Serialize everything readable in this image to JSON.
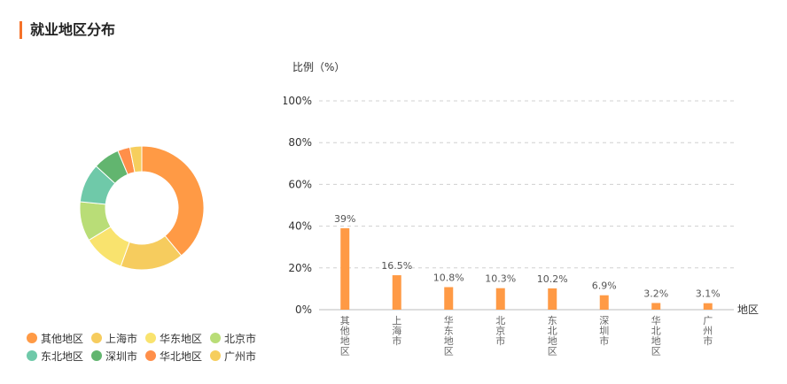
{
  "section": {
    "title": "就业地区分布"
  },
  "colors": {
    "accent": "#f5722a",
    "bar": "#ff9a45",
    "slices": [
      "#ff9a45",
      "#f6cc5e",
      "#f9e36e",
      "#b9dd77",
      "#6fc9a9",
      "#62b56f",
      "#ff8f4a",
      "#f6ce5d"
    ]
  },
  "chart_data": [
    {
      "type": "pie",
      "subtype": "donut",
      "categories": [
        "其他地区",
        "上海市",
        "华东地区",
        "北京市",
        "东北地区",
        "深圳市",
        "华北地区",
        "广州市"
      ],
      "values": [
        39,
        16.5,
        10.8,
        10.3,
        10.2,
        6.9,
        3.2,
        3.1
      ],
      "legend_placement": "bottom",
      "legend_rows": [
        [
          "其他地区",
          "上海市",
          "华东地区",
          "北京市"
        ],
        [
          "东北地区",
          "深圳市",
          "华北地区",
          "广州市"
        ]
      ]
    },
    {
      "type": "bar",
      "categories": [
        "其他地区",
        "上海市",
        "华东地区",
        "北京市",
        "东北地区",
        "深圳市",
        "华北地区",
        "广州市"
      ],
      "values": [
        39,
        16.5,
        10.8,
        10.3,
        10.2,
        6.9,
        3.2,
        3.1
      ],
      "data_labels": [
        "39%",
        "16.5%",
        "10.8%",
        "10.3%",
        "10.2%",
        "6.9%",
        "3.2%",
        "3.1%"
      ],
      "ylabel": "比例（%）",
      "xlabel": "地区",
      "ylim": [
        0,
        100
      ],
      "yticks": [
        0,
        20,
        40,
        60,
        80,
        100
      ],
      "ytick_labels": [
        "0%",
        "20%",
        "40%",
        "60%",
        "80%",
        "100%"
      ],
      "grid": true
    }
  ]
}
